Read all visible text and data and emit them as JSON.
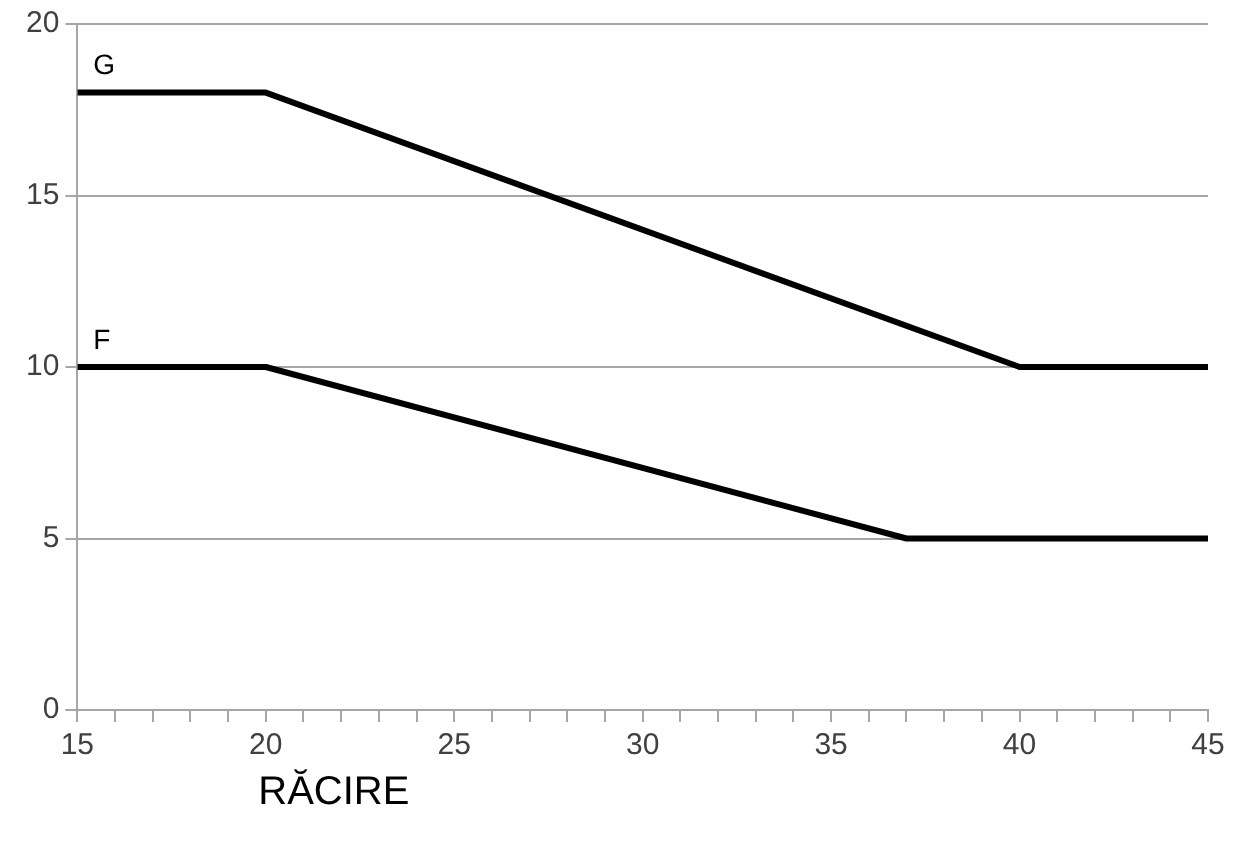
{
  "chart_data": {
    "type": "line",
    "xlabel": "RĂCIRE",
    "series": [
      {
        "name": "G",
        "color": "#000000",
        "x": [
          15,
          20,
          40,
          45
        ],
        "values": [
          18,
          18,
          10,
          10
        ]
      },
      {
        "name": "F",
        "color": "#000000",
        "x": [
          15,
          20,
          37,
          45
        ],
        "values": [
          10,
          10,
          5,
          5
        ]
      }
    ],
    "xlim": [
      15,
      45
    ],
    "xticks": [
      15,
      {
        "value": 16,
        "label": null
      },
      {
        "value": 17,
        "label": null
      },
      {
        "value": 18,
        "label": null
      },
      {
        "value": 19,
        "label": null
      },
      20,
      {
        "value": 21,
        "label": null
      },
      {
        "value": 22,
        "label": null
      },
      {
        "value": 23,
        "label": null
      },
      {
        "value": 24,
        "label": null
      },
      25,
      {
        "value": 26,
        "label": null
      },
      {
        "value": 27,
        "label": null
      },
      {
        "value": 28,
        "label": null
      },
      {
        "value": 29,
        "label": null
      },
      30,
      {
        "value": 31,
        "label": null
      },
      {
        "value": 32,
        "label": null
      },
      {
        "value": 33,
        "label": null
      },
      {
        "value": 34,
        "label": null
      },
      35,
      {
        "value": 36,
        "label": null
      },
      {
        "value": 37,
        "label": null
      },
      {
        "value": 38,
        "label": null
      },
      {
        "value": 39,
        "label": null
      },
      40,
      {
        "value": 41,
        "label": null
      },
      {
        "value": 42,
        "label": null
      },
      {
        "value": 43,
        "label": null
      },
      {
        "value": 44,
        "label": null
      },
      45
    ],
    "ylim": [
      0,
      20
    ],
    "yticks": [
      0,
      5,
      10,
      15,
      20
    ],
    "grid": "y",
    "legend": false,
    "marker": "none",
    "line_style": "solid"
  }
}
